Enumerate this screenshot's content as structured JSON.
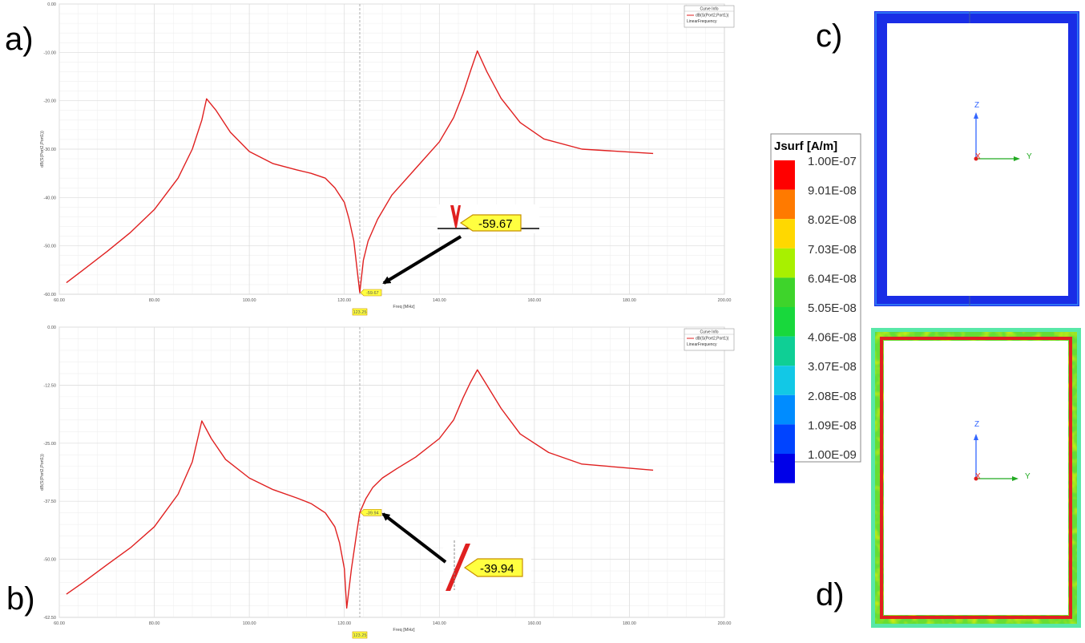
{
  "panels": [
    "a)",
    "b)",
    "c)",
    "d)"
  ],
  "chart_data": [
    {
      "type": "line",
      "panel": "a)",
      "xlabel": "Freq [MHz]",
      "ylabel": "dB(S(Port2,Port1))",
      "xlim": [
        60,
        200
      ],
      "ylim": [
        -60,
        0
      ],
      "xticks": [
        "60.00",
        "80.00",
        "100.00",
        "120.00",
        "140.00",
        "160.00",
        "180.00",
        "200.00"
      ],
      "yticks": [
        "0.00",
        "-10.00",
        "-20.00",
        "-30.00",
        "-40.00",
        "-50.00",
        "-60.00"
      ],
      "grid": true,
      "legend": {
        "title": "Curve Info",
        "entry": "dB(S(Port2,Port1))",
        "subentry": "LinearFrequency",
        "placement": "top-right"
      },
      "series": [
        {
          "color": "#e02020",
          "x": [
            61.5,
            65,
            70,
            75,
            80,
            85,
            88,
            90,
            91,
            93,
            96,
            100,
            105,
            110,
            113,
            116,
            118,
            120,
            121,
            122,
            122.7,
            123.25,
            124,
            125,
            127,
            130,
            135,
            140,
            143,
            145,
            146.5,
            148,
            150,
            153,
            157,
            162,
            170,
            185
          ],
          "y": [
            -57.6,
            -55,
            -51.2,
            -47.2,
            -42.5,
            -36,
            -30,
            -24,
            -19.6,
            -22,
            -26.5,
            -30.5,
            -33,
            -34.3,
            -35,
            -36,
            -38,
            -41,
            -44.5,
            -49,
            -55,
            -59.67,
            -53,
            -49,
            -44.5,
            -39.5,
            -34,
            -28.5,
            -23.5,
            -18.5,
            -14,
            -9.7,
            -14,
            -19.5,
            -24.5,
            -27.9,
            -30,
            -30.9
          ]
        }
      ],
      "marker": {
        "x": 123.25,
        "y": -59.67,
        "xlabel": "123.25",
        "label": "-59.67",
        "zoom_label": "-59.67"
      }
    },
    {
      "type": "line",
      "panel": "b)",
      "xlabel": "Freq [MHz]",
      "ylabel": "dB(S(Port2,Port1))",
      "xlim": [
        60,
        200
      ],
      "ylim": [
        -62.5,
        0
      ],
      "xticks": [
        "60.00",
        "80.00",
        "100.00",
        "120.00",
        "140.00",
        "160.00",
        "180.00",
        "200.00"
      ],
      "yticks": [
        "0.00",
        "-12.50",
        "-25.00",
        "-37.50",
        "-50.00",
        "-62.50"
      ],
      "grid": true,
      "legend": {
        "title": "Curve Info",
        "entry": "dB(S(Port2,Port1))",
        "subentry": "LinearFrequency",
        "placement": "top-right"
      },
      "series": [
        {
          "color": "#e02020",
          "x": [
            61.5,
            65,
            70,
            75,
            80,
            85,
            88,
            90,
            92,
            95,
            100,
            105,
            110,
            113,
            116,
            118,
            119,
            120,
            120.5,
            121.5,
            122.5,
            123.25,
            124.5,
            126,
            128,
            131,
            135,
            140,
            143,
            145,
            146.5,
            148,
            150,
            153,
            157,
            163,
            170,
            185
          ],
          "y": [
            -57.5,
            -55,
            -51.2,
            -47.5,
            -43,
            -36,
            -29,
            -20.2,
            -24,
            -28.5,
            -32.5,
            -35,
            -36.8,
            -38,
            -40,
            -43,
            -46.5,
            -52,
            -60.5,
            -52,
            -45,
            -39.94,
            -37,
            -34.5,
            -32.5,
            -30.5,
            -28,
            -24,
            -20,
            -15.2,
            -12,
            -9.2,
            -12.5,
            -17.5,
            -23,
            -27,
            -29.5,
            -30.8
          ]
        }
      ],
      "marker": {
        "x": 123.25,
        "y": -39.94,
        "xlabel": "123.25",
        "label": "-39.94",
        "zoom_label": "-39.94"
      }
    }
  ],
  "colorbar": {
    "title": "Jsurf [A/m]",
    "labels": [
      "1.00E-07",
      "9.01E-08",
      "8.02E-08",
      "7.03E-08",
      "6.04E-08",
      "5.05E-08",
      "4.06E-08",
      "3.07E-08",
      "2.08E-08",
      "1.09E-08",
      "1.00E-09"
    ],
    "colors": [
      "#ff0000",
      "#ff7a00",
      "#ffd800",
      "#a8f000",
      "#3ed42b",
      "#18d83c",
      "#0fcf95",
      "#12c8e6",
      "#008cff",
      "#0044ff",
      "#0000e8"
    ]
  },
  "field_views": [
    {
      "panel": "c)",
      "axis_labels": [
        "Z",
        "Y",
        "X"
      ],
      "border_color": "#1530e8"
    },
    {
      "panel": "d)",
      "axis_labels": [
        "Z",
        "Y",
        "X"
      ],
      "border_color": "#7fdc3a"
    }
  ]
}
